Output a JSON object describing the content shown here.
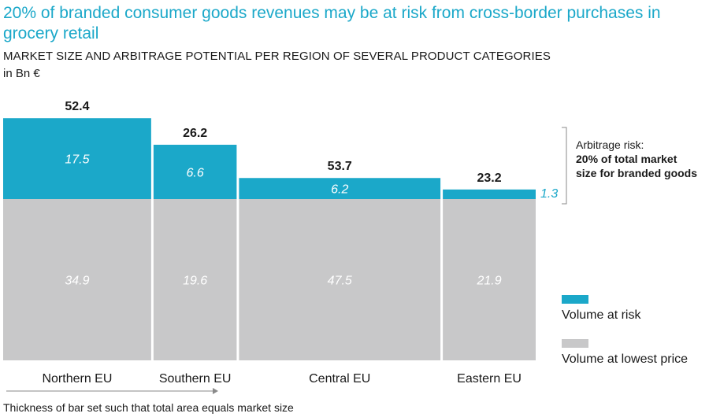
{
  "chart_data": {
    "type": "bar",
    "title": "20% of branded consumer goods revenues may be at risk from cross-border purchases in grocery retail",
    "subtitle": "MARKET SIZE AND ARBITRAGE POTENTIAL PER REGION OF SEVERAL PRODUCT CATEGORIES",
    "units": "in Bn €",
    "categories": [
      "Northern EU",
      "Southern EU",
      "Central EU",
      "Eastern EU"
    ],
    "totals": [
      "52.4",
      "26.2",
      "53.7",
      "23.2"
    ],
    "series": [
      {
        "name": "Volume at risk",
        "color": "#1ba8c9",
        "values": [
          17.5,
          6.6,
          6.2,
          1.3
        ],
        "labels": [
          "17.5",
          "6.6",
          "6.2",
          "1.3"
        ]
      },
      {
        "name": "Volume at lowest price",
        "color": "#c8c8c9",
        "values": [
          34.9,
          19.6,
          47.5,
          21.9
        ],
        "labels": [
          "34.9",
          "19.6",
          "47.5",
          "21.9"
        ]
      }
    ],
    "annotation": {
      "line1": "Arbitrage risk:",
      "line2": "20% of total market",
      "line3": "size for branded goods"
    },
    "footnote": "Thickness of bar set such that total area equals market size"
  }
}
